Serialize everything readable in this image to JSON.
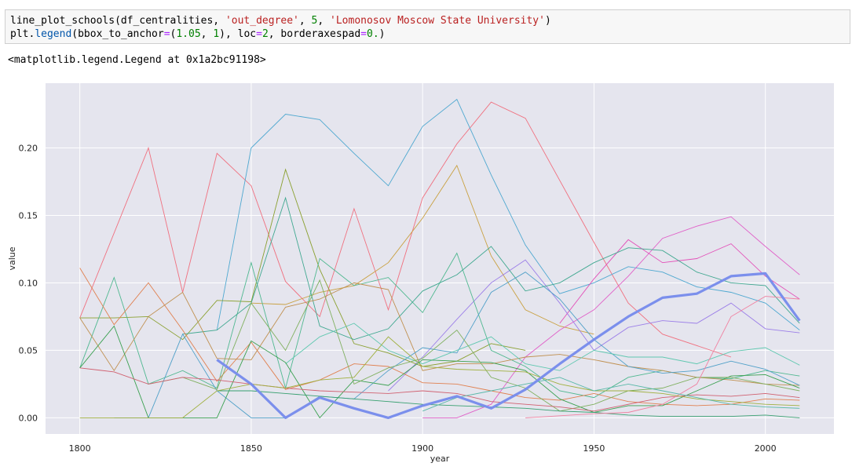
{
  "cell": {
    "line1": {
      "fn": "line_plot_schools",
      "open": "(df_centralities, ",
      "arg1": "'out_degree'",
      "sep1": ", ",
      "arg2": "5",
      "sep2": ", ",
      "arg3": "'Lomonosov Moscow State University'",
      "close": ")"
    },
    "line2": {
      "obj": "plt.",
      "fn": "legend",
      "p1": "(bbox_to_anchor",
      "eq1": "=",
      "p2": "(",
      "n1": "1.05",
      "p3": ", ",
      "n2": "1",
      "p4": "), loc",
      "eq2": "=",
      "n3": "2",
      "p5": ", borderaxespad",
      "eq3": "=",
      "n4": "0.",
      "p6": ")"
    },
    "output": "<matplotlib.legend.Legend at 0x1a2bc91198>"
  },
  "chart_data": {
    "type": "line",
    "xlabel": "year",
    "ylabel": "value",
    "xlim": [
      1790,
      2020
    ],
    "ylim": [
      -0.012,
      0.248
    ],
    "xticks": [
      1800,
      1850,
      1900,
      1950,
      2000
    ],
    "yticks": [
      0.0,
      0.05,
      0.1,
      0.15,
      0.2
    ],
    "ytick_labels": [
      "0.00",
      "0.05",
      "0.10",
      "0.15",
      "0.20"
    ],
    "background": "#e5e5ee",
    "grid": true,
    "highlight": {
      "color": "#7b8fec",
      "x": [
        1840,
        1850,
        1860,
        1870,
        1880,
        1890,
        1900,
        1910,
        1920,
        1930,
        1940,
        1950,
        1960,
        1970,
        1980,
        1990,
        2000,
        2010
      ],
      "y": [
        0.043,
        0.025,
        0.0,
        0.015,
        0.007,
        0.0,
        0.009,
        0.016,
        0.007,
        0.021,
        0.04,
        0.058,
        0.075,
        0.089,
        0.092,
        0.105,
        0.107,
        0.072
      ]
    },
    "series": [
      {
        "color": "#f0707f",
        "x": [
          1800,
          1820,
          1830,
          1840,
          1850,
          1860,
          1870,
          1880,
          1890,
          1900,
          1910,
          1920,
          1930,
          1950,
          1960,
          1970,
          1990
        ],
        "y": [
          0.074,
          0.2,
          0.093,
          0.196,
          0.172,
          0.101,
          0.075,
          0.155,
          0.08,
          0.163,
          0.203,
          0.234,
          0.222,
          0.13,
          0.085,
          0.062,
          0.045
        ]
      },
      {
        "color": "#4fa8d0",
        "x": [
          1840,
          1850,
          1860,
          1870,
          1880,
          1890,
          1900,
          1910,
          1920,
          1930,
          1940,
          1950,
          1960,
          1970,
          1980,
          1990,
          2000,
          2010
        ],
        "y": [
          0.065,
          0.2,
          0.225,
          0.221,
          0.196,
          0.172,
          0.216,
          0.236,
          0.18,
          0.128,
          0.092,
          0.1,
          0.112,
          0.108,
          0.097,
          0.093,
          0.085,
          0.065
        ]
      },
      {
        "color": "#c9a040",
        "x": [
          1850,
          1860,
          1870,
          1880,
          1890,
          1900,
          1910,
          1920,
          1930,
          1940,
          1950
        ],
        "y": [
          0.085,
          0.084,
          0.093,
          0.098,
          0.115,
          0.148,
          0.187,
          0.12,
          0.08,
          0.068,
          0.062
        ]
      },
      {
        "color": "#e060c8",
        "x": [
          1900,
          1910,
          1920,
          1930,
          1940,
          1950,
          1960,
          1970,
          1980,
          1990,
          2000,
          2010
        ],
        "y": [
          0.0,
          0.0,
          0.01,
          0.045,
          0.065,
          0.08,
          0.105,
          0.133,
          0.142,
          0.149,
          0.127,
          0.106
        ]
      },
      {
        "color": "#e34fb8",
        "x": [
          1940,
          1950,
          1960,
          1970,
          1980,
          1990,
          2000,
          2010
        ],
        "y": [
          0.07,
          0.103,
          0.132,
          0.115,
          0.118,
          0.129,
          0.105,
          0.088
        ]
      },
      {
        "color": "#9c7fe8",
        "x": [
          1890,
          1900,
          1910,
          1920,
          1930,
          1940,
          1950,
          1960,
          1970,
          1980,
          1990,
          2000,
          2010
        ],
        "y": [
          0.02,
          0.045,
          0.073,
          0.1,
          0.117,
          0.085,
          0.05,
          0.067,
          0.072,
          0.07,
          0.085,
          0.066,
          0.063
        ]
      },
      {
        "color": "#8aa030",
        "x": [
          1800,
          1810,
          1820,
          1830,
          1840,
          1850,
          1860,
          1870,
          1880,
          1890,
          1900,
          1910,
          1920,
          1930
        ],
        "y": [
          0.074,
          0.074,
          0.075,
          0.058,
          0.087,
          0.086,
          0.184,
          0.11,
          0.055,
          0.048,
          0.038,
          0.042,
          0.055,
          0.05
        ]
      },
      {
        "color": "#50b890",
        "x": [
          1800,
          1810,
          1820,
          1830,
          1840,
          1850,
          1860,
          1870,
          1880,
          1890,
          1900,
          1910,
          1920,
          1930,
          1940,
          1950,
          1960,
          1970,
          1980,
          1990,
          2000,
          2010
        ],
        "y": [
          0.037,
          0.104,
          0.025,
          0.035,
          0.022,
          0.115,
          0.022,
          0.118,
          0.098,
          0.104,
          0.078,
          0.122,
          0.05,
          0.038,
          0.02,
          0.015,
          0.03,
          0.035,
          0.03,
          0.029,
          0.035,
          0.031
        ]
      },
      {
        "color": "#40a890",
        "x": [
          1830,
          1840,
          1850,
          1860,
          1870,
          1880,
          1890,
          1900,
          1910,
          1920,
          1930,
          1940,
          1950,
          1960,
          1970,
          1980,
          1990,
          2000,
          2010
        ],
        "y": [
          0.062,
          0.065,
          0.085,
          0.163,
          0.068,
          0.058,
          0.066,
          0.094,
          0.106,
          0.127,
          0.094,
          0.1,
          0.115,
          0.126,
          0.124,
          0.108,
          0.1,
          0.098,
          0.07
        ]
      },
      {
        "color": "#e08050",
        "x": [
          1800,
          1810,
          1820,
          1830,
          1840,
          1850,
          1860,
          1870,
          1880,
          1890,
          1900,
          1910,
          1920,
          1930,
          1940,
          1950,
          1960,
          1970,
          1980,
          1990,
          2000,
          2010
        ],
        "y": [
          0.111,
          0.069,
          0.1,
          0.065,
          0.027,
          0.056,
          0.021,
          0.028,
          0.04,
          0.038,
          0.026,
          0.025,
          0.02,
          0.015,
          0.013,
          0.018,
          0.012,
          0.01,
          0.009,
          0.01,
          0.014,
          0.013
        ]
      },
      {
        "color": "#c09050",
        "x": [
          1800,
          1810,
          1820,
          1830,
          1840,
          1850,
          1860,
          1870,
          1880,
          1890,
          1900,
          1910,
          1920,
          1930,
          1940,
          1950,
          1960,
          1970,
          1980,
          1990,
          2000,
          2010
        ],
        "y": [
          0.074,
          0.035,
          0.075,
          0.093,
          0.044,
          0.043,
          0.082,
          0.088,
          0.1,
          0.095,
          0.035,
          0.04,
          0.04,
          0.045,
          0.047,
          0.043,
          0.038,
          0.035,
          0.03,
          0.028,
          0.025,
          0.024
        ]
      },
      {
        "color": "#50a0c8",
        "x": [
          1810,
          1820,
          1830,
          1840,
          1850,
          1860,
          1870,
          1880,
          1890,
          1900,
          1910,
          1920,
          1930,
          1940,
          1950,
          1960,
          1970,
          1980,
          1990,
          2000,
          2010
        ],
        "y": [
          0.0,
          0.0,
          0.062,
          0.02,
          0.0,
          0.0,
          0.016,
          0.014,
          0.035,
          0.052,
          0.048,
          0.093,
          0.108,
          0.088,
          0.058,
          0.038,
          0.033,
          0.035,
          0.042,
          0.036,
          0.024
        ]
      },
      {
        "color": "#60c8b0",
        "x": [
          1860,
          1870,
          1880,
          1890,
          1900,
          1910,
          1920,
          1930,
          1940,
          1950,
          1960,
          1970,
          1980,
          1990,
          2000,
          2010
        ],
        "y": [
          0.04,
          0.06,
          0.07,
          0.05,
          0.04,
          0.05,
          0.06,
          0.04,
          0.035,
          0.05,
          0.045,
          0.045,
          0.04,
          0.049,
          0.052,
          0.039
        ]
      },
      {
        "color": "#3aa050",
        "x": [
          1800,
          1810,
          1820,
          1830,
          1840,
          1850,
          1860,
          1870,
          1880,
          1890,
          1900,
          1910,
          1920,
          1930,
          1940,
          1950,
          1960,
          1970,
          1980,
          1990,
          2000,
          2010
        ],
        "y": [
          0.037,
          0.068,
          0.0,
          0.0,
          0.0,
          0.057,
          0.041,
          0.0,
          0.028,
          0.024,
          0.043,
          0.042,
          0.041,
          0.035,
          0.014,
          0.004,
          0.009,
          0.009,
          0.02,
          0.031,
          0.032,
          0.022
        ]
      },
      {
        "color": "#80b060",
        "x": [
          1820,
          1830,
          1840,
          1850,
          1860,
          1870,
          1880,
          1890,
          1900,
          1910,
          1920,
          1930,
          1940,
          1950,
          1960,
          1970,
          1980,
          1990,
          2000,
          2010
        ],
        "y": [
          0.025,
          0.03,
          0.021,
          0.085,
          0.05,
          0.102,
          0.025,
          0.037,
          0.044,
          0.065,
          0.03,
          0.022,
          0.005,
          0.01,
          0.02,
          0.022,
          0.03,
          0.03,
          0.025,
          0.02
        ]
      },
      {
        "color": "#d06070",
        "x": [
          1800,
          1810,
          1820,
          1830,
          1840,
          1850,
          1860,
          1870,
          1880,
          1890,
          1900,
          1910,
          1920,
          1930,
          1940,
          1950,
          1960,
          1970,
          1980,
          1990,
          2000,
          2010
        ],
        "y": [
          0.037,
          0.034,
          0.025,
          0.03,
          0.028,
          0.025,
          0.022,
          0.02,
          0.019,
          0.018,
          0.02,
          0.018,
          0.012,
          0.01,
          0.008,
          0.005,
          0.01,
          0.015,
          0.017,
          0.016,
          0.018,
          0.015
        ]
      },
      {
        "color": "#38a070",
        "x": [
          1840,
          1850,
          1860,
          1870,
          1880,
          1890,
          1900,
          1910,
          1920,
          1930,
          1940,
          1950,
          1960,
          1970,
          1980,
          1990,
          2000,
          2010
        ],
        "y": [
          0.02,
          0.02,
          0.018,
          0.016,
          0.014,
          0.012,
          0.01,
          0.009,
          0.008,
          0.007,
          0.005,
          0.004,
          0.002,
          0.001,
          0.001,
          0.001,
          0.002,
          0.0
        ]
      },
      {
        "color": "#f080a0",
        "x": [
          1930,
          1950,
          1960,
          1970,
          1980,
          1990,
          2000,
          2010
        ],
        "y": [
          0.0,
          0.003,
          0.004,
          0.01,
          0.025,
          0.075,
          0.09,
          0.088
        ]
      },
      {
        "color": "#a0b040",
        "x": [
          1800,
          1810,
          1820,
          1830,
          1840,
          1850,
          1860,
          1870,
          1880,
          1890,
          1900,
          1910,
          1920,
          1930,
          1940,
          1950,
          1960,
          1970,
          1980,
          1990,
          2000,
          2010
        ],
        "y": [
          0.0,
          0.0,
          0.0,
          0.0,
          0.02,
          0.025,
          0.022,
          0.028,
          0.03,
          0.06,
          0.038,
          0.036,
          0.035,
          0.034,
          0.025,
          0.02,
          0.02,
          0.018,
          0.014,
          0.012,
          0.01,
          0.009
        ]
      },
      {
        "color": "#58b8a8",
        "x": [
          1900,
          1910,
          1920,
          1930,
          1940,
          1950,
          1960,
          1970,
          1980,
          1990,
          2000,
          2010
        ],
        "y": [
          0.005,
          0.015,
          0.02,
          0.025,
          0.03,
          0.02,
          0.025,
          0.02,
          0.015,
          0.01,
          0.008,
          0.007
        ]
      }
    ]
  }
}
